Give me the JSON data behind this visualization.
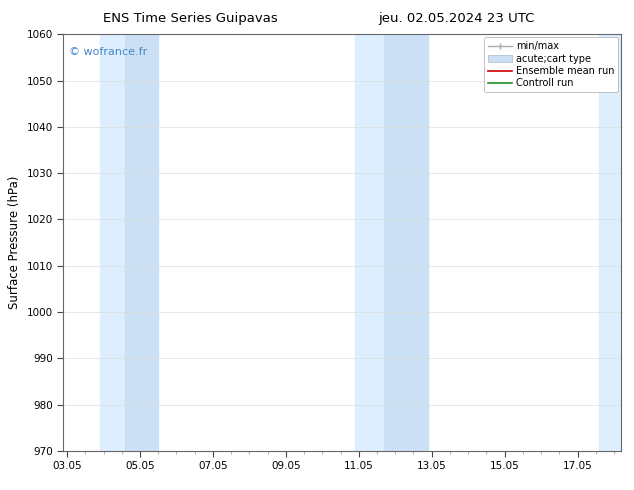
{
  "title_left": "ENS Time Series Guipavas",
  "title_right": "jeu. 02.05.2024 23 UTC",
  "ylabel": "Surface Pressure (hPa)",
  "xlabel_ticks": [
    "03.05",
    "05.05",
    "07.05",
    "09.05",
    "11.05",
    "13.05",
    "15.05",
    "17.05"
  ],
  "x_positions": [
    0,
    2,
    4,
    6,
    8,
    10,
    12,
    14
  ],
  "xlim": [
    -0.1,
    15.2
  ],
  "ylim": [
    970,
    1060
  ],
  "yticks": [
    970,
    980,
    990,
    1000,
    1010,
    1020,
    1030,
    1040,
    1050,
    1060
  ],
  "watermark": "© wofrance.fr",
  "watermark_color": "#4488cc",
  "bg_color": "#ffffff",
  "plot_bg_color": "#ffffff",
  "shaded_bands": [
    {
      "x_start": 0.9,
      "x_end": 1.6,
      "color": "#ddeeff"
    },
    {
      "x_start": 1.6,
      "x_end": 2.5,
      "color": "#cce0f5"
    },
    {
      "x_start": 7.9,
      "x_end": 8.7,
      "color": "#ddeeff"
    },
    {
      "x_start": 8.7,
      "x_end": 9.9,
      "color": "#cce0f5"
    },
    {
      "x_start": 14.6,
      "x_end": 15.2,
      "color": "#ddeeff"
    }
  ],
  "legend_entries": [
    {
      "label": "min/max",
      "type": "errorbar",
      "color": "#aaaaaa"
    },
    {
      "label": "acute;cart type",
      "type": "box",
      "facecolor": "#cce0f5",
      "edgecolor": "#aabbcc"
    },
    {
      "label": "Ensemble mean run",
      "type": "line",
      "color": "#cc0000"
    },
    {
      "label": "Controll run",
      "type": "line",
      "color": "#228B22"
    }
  ],
  "tick_label_fontsize": 7.5,
  "axis_label_fontsize": 8.5,
  "title_fontsize": 9.5,
  "legend_fontsize": 7,
  "watermark_fontsize": 8
}
